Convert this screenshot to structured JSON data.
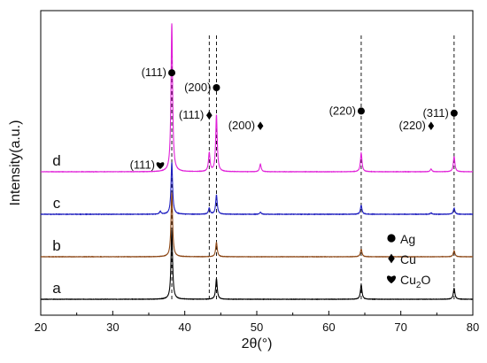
{
  "chart_data": {
    "type": "line",
    "xlabel": "2θ(°)",
    "ylabel": "Intensity(a.u.)",
    "xlim": [
      20,
      80
    ],
    "xticks": [
      20,
      30,
      40,
      50,
      60,
      70,
      80
    ],
    "xtick_labels": [
      "20",
      "30",
      "40",
      "50",
      "60",
      "70",
      "80"
    ],
    "yticks_shown": false,
    "grid": false,
    "legend_placement": "bottom-right",
    "series": [
      {
        "name": "a",
        "color": "#000000",
        "offset": 0,
        "peaks": [
          {
            "x": 38.2,
            "h": 1.0
          },
          {
            "x": 44.4,
            "h": 0.3
          },
          {
            "x": 64.5,
            "h": 0.21
          },
          {
            "x": 77.4,
            "h": 0.16
          }
        ],
        "noise": 0.004
      },
      {
        "name": "b",
        "color": "#8b4513",
        "offset": 1,
        "peaks": [
          {
            "x": 38.2,
            "h": 0.93
          },
          {
            "x": 44.4,
            "h": 0.21
          },
          {
            "x": 64.5,
            "h": 0.11
          },
          {
            "x": 77.4,
            "h": 0.09
          }
        ],
        "noise": 0.004
      },
      {
        "name": "c",
        "color": "#1f1fbf",
        "offset": 2,
        "peaks": [
          {
            "x": 36.6,
            "h": 0.04
          },
          {
            "x": 38.2,
            "h": 0.75
          },
          {
            "x": 43.4,
            "h": 0.09
          },
          {
            "x": 44.4,
            "h": 0.28
          },
          {
            "x": 50.5,
            "h": 0.03
          },
          {
            "x": 64.5,
            "h": 0.13
          },
          {
            "x": 74.2,
            "h": 0.02
          },
          {
            "x": 77.4,
            "h": 0.09
          }
        ],
        "noise": 0.005
      },
      {
        "name": "d",
        "color": "#e020d8",
        "offset": 3,
        "peaks": [
          {
            "x": 38.2,
            "h": 2.15
          },
          {
            "x": 43.4,
            "h": 0.27
          },
          {
            "x": 44.4,
            "h": 0.82
          },
          {
            "x": 50.5,
            "h": 0.11
          },
          {
            "x": 64.5,
            "h": 0.27
          },
          {
            "x": 74.2,
            "h": 0.04
          },
          {
            "x": 77.4,
            "h": 0.22
          }
        ],
        "noise": 0.004
      }
    ],
    "reference_lines_x": [
      38.2,
      43.4,
      44.4,
      64.5,
      77.4
    ],
    "annotations": [
      {
        "text": "(111)",
        "x": 38.2,
        "symbol": "circle",
        "level": 5.35
      },
      {
        "text": "(200)",
        "x": 44.4,
        "symbol": "circle",
        "level": 5.0
      },
      {
        "text": "(111)",
        "x": 43.4,
        "symbol": "diamond",
        "level": 4.35
      },
      {
        "text": "(200)",
        "x": 50.5,
        "symbol": "diamond",
        "level": 4.1
      },
      {
        "text": "(220)",
        "x": 64.5,
        "symbol": "circle",
        "level": 4.45
      },
      {
        "text": "(220)",
        "x": 74.2,
        "symbol": "diamond",
        "level": 4.1
      },
      {
        "text": "(311)",
        "x": 77.4,
        "symbol": "circle",
        "level": 4.4
      },
      {
        "text": "(111)",
        "x": 36.6,
        "symbol": "heart",
        "level": 3.18
      }
    ],
    "legend": [
      {
        "symbol": "circle",
        "label": "Ag"
      },
      {
        "symbol": "diamond",
        "label": "Cu"
      },
      {
        "symbol": "heart",
        "label": "Cu",
        "subscript": "2",
        "suffix": "O"
      }
    ]
  }
}
